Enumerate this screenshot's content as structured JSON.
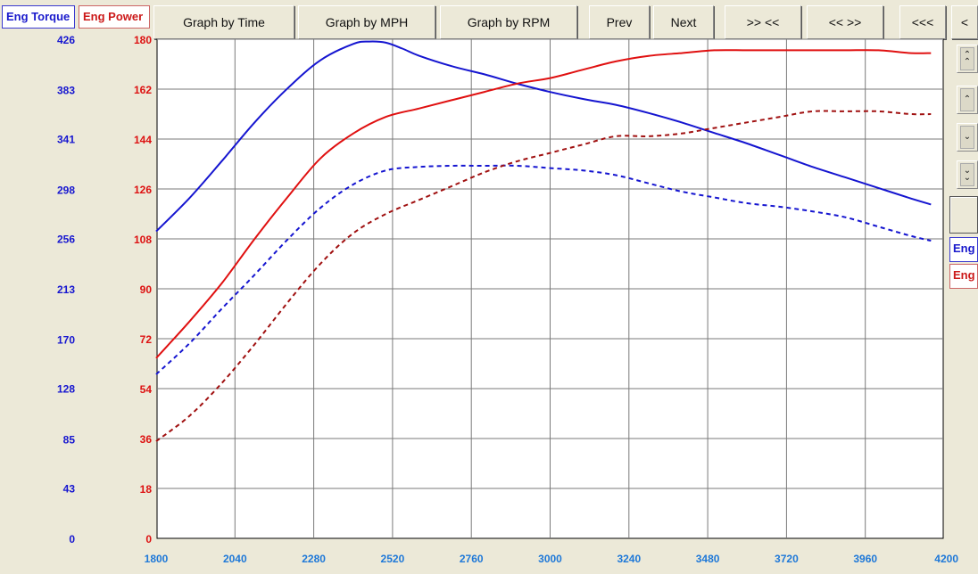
{
  "tabs": {
    "torque_label": "Eng Torque",
    "power_label": "Eng Power"
  },
  "toolbar": {
    "graph_by_time": "Graph by Time",
    "graph_by_mph": "Graph by MPH",
    "graph_by_rpm": "Graph by RPM",
    "prev": "Prev",
    "next": "Next",
    "zoom_in": ">> <<",
    "zoom_out": "<< >>",
    "scroll_left": "<<<",
    "scroll_left_single": "<"
  },
  "side": {
    "torque_label": "Eng",
    "power_label": "Eng",
    "btn_top_icon": "double-chevron-up-icon",
    "btn_up_icon": "chevron-up-icon",
    "btn_down_icon": "chevron-down-icon",
    "btn_bottom_icon": "double-chevron-down-icon"
  },
  "chart_data": {
    "type": "line",
    "grid": true,
    "x_ticks": [
      1800,
      2040,
      2280,
      2520,
      2760,
      3000,
      3240,
      3480,
      3720,
      3960,
      4200
    ],
    "xlim": [
      1800,
      4200
    ],
    "torque_ticks": [
      0,
      43,
      85,
      128,
      170,
      213,
      256,
      298,
      341,
      383,
      426
    ],
    "torque_lim": [
      0,
      426
    ],
    "power_ticks": [
      0,
      18,
      36,
      54,
      72,
      90,
      108,
      126,
      144,
      162,
      180
    ],
    "power_lim": [
      0,
      180
    ],
    "colors": {
      "torque": "#1515d0",
      "power": "#e01010",
      "power_dashed": "#a01010",
      "torque_axis": "#1515d0",
      "power_axis": "#dd1010",
      "rpm_axis": "#1e78d8"
    },
    "series": [
      {
        "axis": "torque",
        "style": "solid",
        "x": [
          1800,
          1900,
          2000,
          2100,
          2200,
          2300,
          2400,
          2450,
          2500,
          2550,
          2600,
          2700,
          2800,
          2900,
          3000,
          3100,
          3200,
          3300,
          3400,
          3500,
          3600,
          3700,
          3800,
          3900,
          4000,
          4100,
          4160
        ],
        "y": [
          262,
          290,
          322,
          355,
          384,
          408,
          422,
          424,
          423,
          418,
          412,
          403,
          396,
          388,
          381,
          375,
          370,
          363,
          355,
          346,
          337,
          327,
          317,
          308,
          299,
          290,
          285
        ]
      },
      {
        "axis": "torque",
        "style": "dashed",
        "x": [
          1800,
          1900,
          2000,
          2100,
          2200,
          2300,
          2400,
          2500,
          2600,
          2700,
          2800,
          2900,
          3000,
          3100,
          3200,
          3300,
          3400,
          3500,
          3600,
          3700,
          3800,
          3900,
          4000,
          4100,
          4160
        ],
        "y": [
          140,
          166,
          196,
          225,
          255,
          282,
          302,
          314,
          317,
          318,
          318,
          318,
          316,
          314,
          310,
          303,
          296,
          291,
          286,
          283,
          279,
          274,
          266,
          258,
          254
        ]
      },
      {
        "axis": "power",
        "style": "solid",
        "x": [
          1800,
          1900,
          2000,
          2100,
          2200,
          2300,
          2400,
          2500,
          2600,
          2700,
          2800,
          2900,
          3000,
          3100,
          3200,
          3300,
          3400,
          3500,
          3600,
          3700,
          3800,
          3900,
          4000,
          4100,
          4160
        ],
        "y": [
          65,
          78,
          92,
          108,
          123,
          137,
          146,
          152,
          155,
          158,
          161,
          164,
          166,
          169,
          172,
          174,
          175,
          176,
          176,
          176,
          176,
          176,
          176,
          175,
          175
        ]
      },
      {
        "axis": "power",
        "style": "dashed",
        "x": [
          1800,
          1900,
          2000,
          2100,
          2200,
          2300,
          2400,
          2500,
          2600,
          2700,
          2800,
          2900,
          3000,
          3100,
          3200,
          3300,
          3400,
          3500,
          3600,
          3700,
          3800,
          3900,
          4000,
          4100,
          4160
        ],
        "y": [
          35,
          44,
          56,
          70,
          85,
          99,
          110,
          117,
          122,
          127,
          132,
          136,
          139,
          142,
          145,
          145,
          146,
          148,
          150,
          152,
          154,
          154,
          154,
          153,
          153
        ]
      }
    ]
  }
}
